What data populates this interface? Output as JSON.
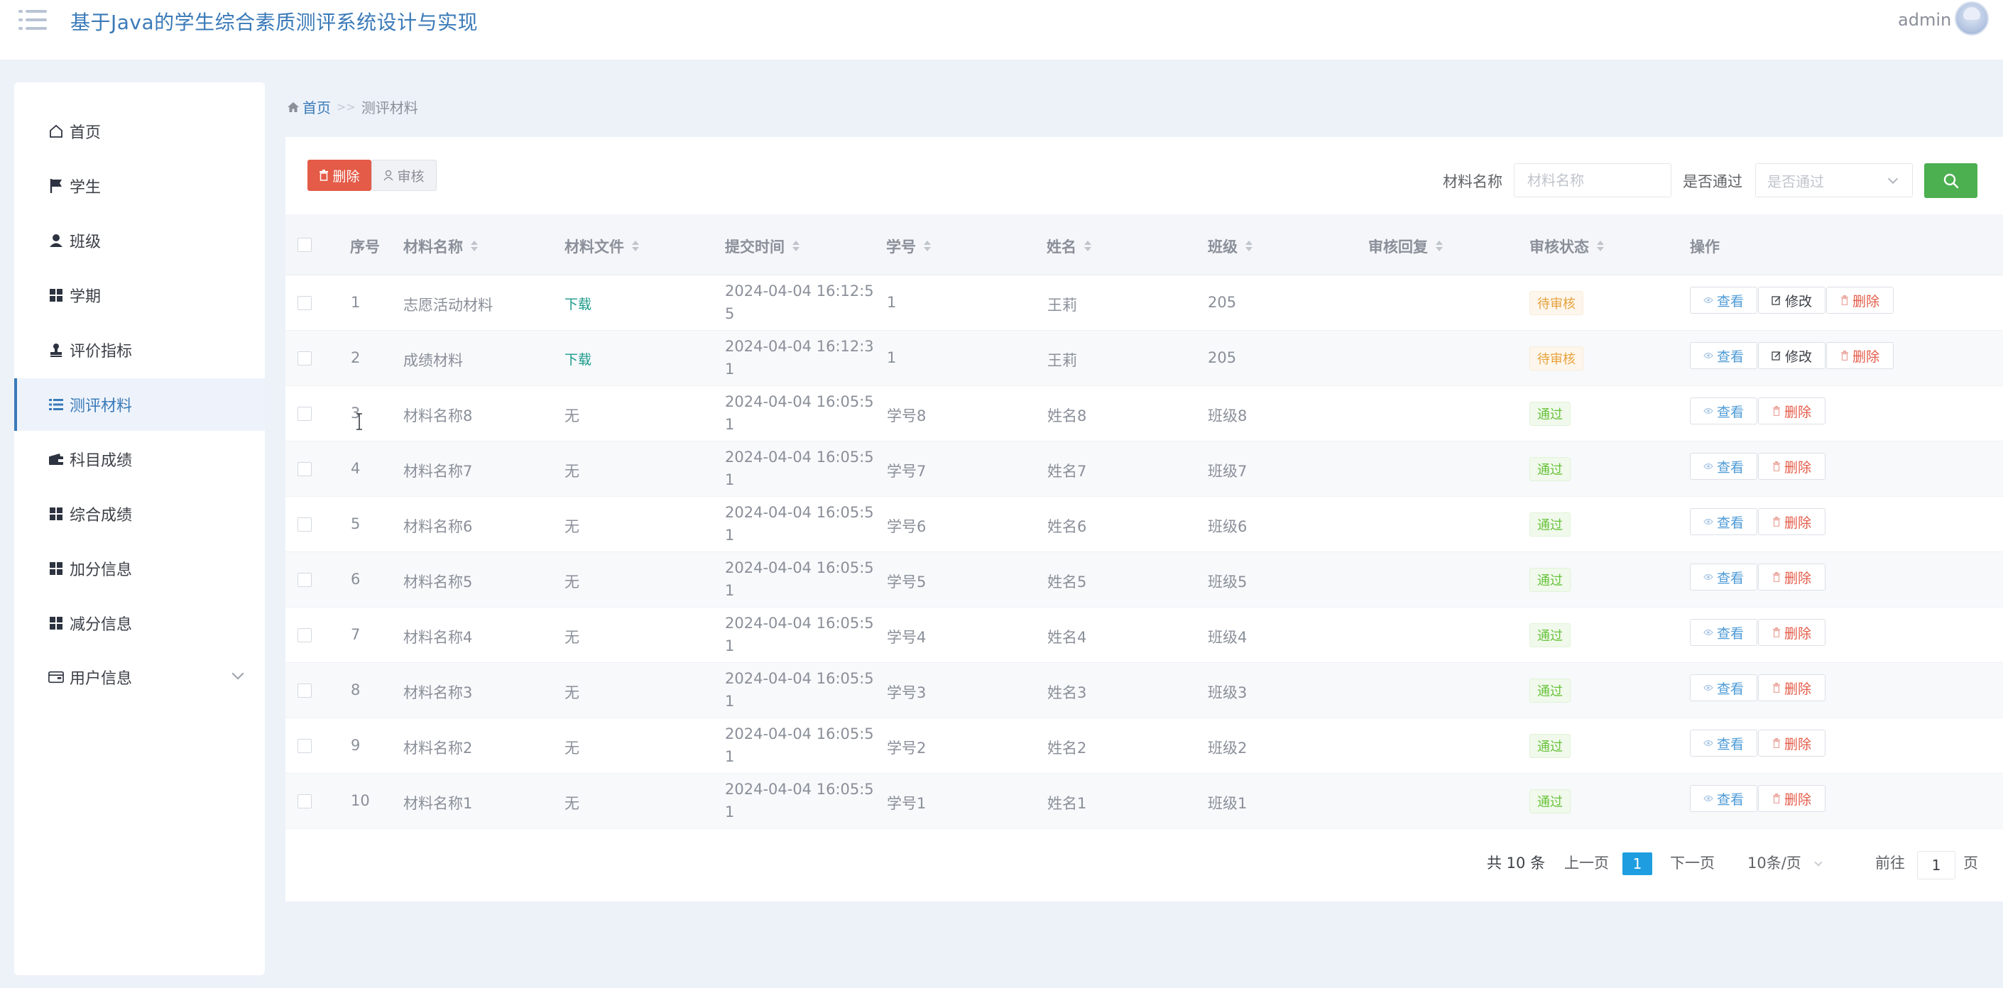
{
  "header": {
    "title": "基于Java的学生综合素质测评系统设计与实现",
    "user": "admin"
  },
  "sidebar": {
    "items": [
      {
        "label": "首页",
        "icon": "home-icon"
      },
      {
        "label": "学生",
        "icon": "flag-icon"
      },
      {
        "label": "班级",
        "icon": "user-icon"
      },
      {
        "label": "学期",
        "icon": "grid-icon"
      },
      {
        "label": "评价指标",
        "icon": "stamp-icon"
      },
      {
        "label": "测评材料",
        "icon": "list-icon",
        "active": true
      },
      {
        "label": "科目成绩",
        "icon": "wallet-icon"
      },
      {
        "label": "综合成绩",
        "icon": "grid-icon"
      },
      {
        "label": "加分信息",
        "icon": "grid-icon"
      },
      {
        "label": "减分信息",
        "icon": "grid-icon"
      },
      {
        "label": "用户信息",
        "icon": "card-icon",
        "expandable": true
      }
    ]
  },
  "breadcrumb": {
    "home": "首页",
    "separator": ">>",
    "current": "测评材料"
  },
  "toolbar": {
    "delete_label": "删除",
    "audit_label": "审核",
    "name_label": "材料名称",
    "name_placeholder": "材料名称",
    "pass_label": "是否通过",
    "pass_placeholder": "是否通过"
  },
  "table": {
    "headers": {
      "index": "序号",
      "name": "材料名称",
      "file": "材料文件",
      "time": "提交时间",
      "student_no": "学号",
      "student_name": "姓名",
      "class": "班级",
      "reply": "审核回复",
      "status": "审核状态",
      "actions": "操作"
    },
    "action_labels": {
      "view": "查看",
      "edit": "修改",
      "delete": "删除"
    },
    "rows": [
      {
        "index": "1",
        "name": "志愿活动材料",
        "file": "下载",
        "time": "2024-04-04 16:12:55",
        "student_no": "1",
        "student_name": "王莉",
        "class": "205",
        "reply": "",
        "status": "待审核"
      },
      {
        "index": "2",
        "name": "成绩材料",
        "file": "下载",
        "time": "2024-04-04 16:12:31",
        "student_no": "1",
        "student_name": "王莉",
        "class": "205",
        "reply": "",
        "status": "待审核"
      },
      {
        "index": "3",
        "name": "材料名称8",
        "file": "无",
        "time": "2024-04-04 16:05:51",
        "student_no": "学号8",
        "student_name": "姓名8",
        "class": "班级8",
        "reply": "",
        "status": "通过"
      },
      {
        "index": "4",
        "name": "材料名称7",
        "file": "无",
        "time": "2024-04-04 16:05:51",
        "student_no": "学号7",
        "student_name": "姓名7",
        "class": "班级7",
        "reply": "",
        "status": "通过"
      },
      {
        "index": "5",
        "name": "材料名称6",
        "file": "无",
        "time": "2024-04-04 16:05:51",
        "student_no": "学号6",
        "student_name": "姓名6",
        "class": "班级6",
        "reply": "",
        "status": "通过"
      },
      {
        "index": "6",
        "name": "材料名称5",
        "file": "无",
        "time": "2024-04-04 16:05:51",
        "student_no": "学号5",
        "student_name": "姓名5",
        "class": "班级5",
        "reply": "",
        "status": "通过"
      },
      {
        "index": "7",
        "name": "材料名称4",
        "file": "无",
        "time": "2024-04-04 16:05:51",
        "student_no": "学号4",
        "student_name": "姓名4",
        "class": "班级4",
        "reply": "",
        "status": "通过"
      },
      {
        "index": "8",
        "name": "材料名称3",
        "file": "无",
        "time": "2024-04-04 16:05:51",
        "student_no": "学号3",
        "student_name": "姓名3",
        "class": "班级3",
        "reply": "",
        "status": "通过"
      },
      {
        "index": "9",
        "name": "材料名称2",
        "file": "无",
        "time": "2024-04-04 16:05:51",
        "student_no": "学号2",
        "student_name": "姓名2",
        "class": "班级2",
        "reply": "",
        "status": "通过"
      },
      {
        "index": "10",
        "name": "材料名称1",
        "file": "无",
        "time": "2024-04-04 16:05:51",
        "student_no": "学号1",
        "student_name": "姓名1",
        "class": "班级1",
        "reply": "",
        "status": "通过"
      }
    ]
  },
  "pagination": {
    "total": "共 10 条",
    "prev": "上一页",
    "current": "1",
    "next": "下一页",
    "page_size": "10条/页",
    "goto_label": "前往",
    "goto_value": "1",
    "page_suffix": "页"
  },
  "colors": {
    "accent": "#3a7ab8",
    "danger": "#e45b48",
    "success": "#4caf50",
    "pagination_active": "#1e9de0"
  }
}
